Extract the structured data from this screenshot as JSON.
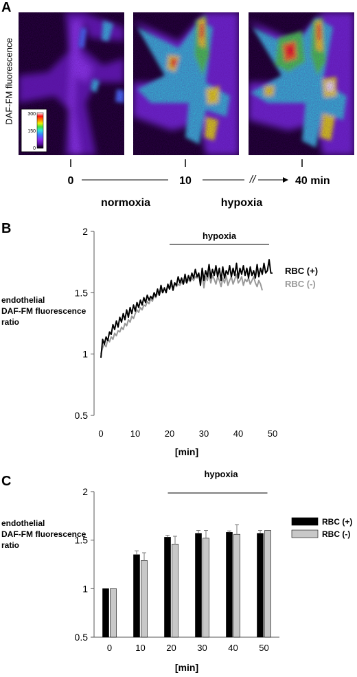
{
  "panels": {
    "a": {
      "letter": "A",
      "ylabel": "DAF-FM fluorescence",
      "colorbar_ticks": [
        "300",
        "150",
        "0"
      ],
      "colorbar_colors": [
        "#000000",
        "#5a0ea0",
        "#8b2cf0",
        "#3a7cff",
        "#2ee0e0",
        "#40e040",
        "#f0f000",
        "#ff8000",
        "#ff1010",
        "#ffffff"
      ],
      "timeline": {
        "t0": "0",
        "t10": "10",
        "t40": "40 min",
        "break_mark": "//",
        "normoxia": "normoxia",
        "hypoxia": "hypoxia"
      }
    },
    "b": {
      "letter": "B",
      "hypoxia_label": "hypoxia"
    },
    "c": {
      "letter": "C",
      "hypoxia_label": "hypoxia"
    }
  },
  "chart_data": [
    {
      "type": "line",
      "panel": "B",
      "ylabel": "endothelial DAF-FM fluorescence ratio",
      "xlabel": "[min]",
      "xlim": [
        -2,
        52
      ],
      "ylim": [
        0.5,
        2
      ],
      "xticks": [
        0,
        10,
        20,
        30,
        40,
        50
      ],
      "yticks": [
        0.5,
        1,
        1.5,
        2
      ],
      "annotation": "hypoxia",
      "annotation_range": [
        20,
        49
      ],
      "grid": false,
      "legend_placement": "right, at line ends",
      "series": [
        {
          "name": "RBC (+)",
          "color": "#000000",
          "x": [
            0,
            0.5,
            1,
            1.5,
            2,
            2.5,
            3,
            3.5,
            4,
            4.5,
            5,
            5.5,
            6,
            6.5,
            7,
            7.5,
            8,
            8.5,
            9,
            9.5,
            10,
            10.5,
            11,
            11.5,
            12,
            12.5,
            13,
            13.5,
            14,
            14.5,
            15,
            15.5,
            16,
            16.5,
            17,
            17.5,
            18,
            18.5,
            19,
            19.5,
            20,
            20.5,
            21,
            21.5,
            22,
            22.5,
            23,
            23.5,
            24,
            24.5,
            25,
            25.5,
            26,
            26.5,
            27,
            27.5,
            28,
            28.5,
            29,
            29.5,
            30,
            30.5,
            31,
            31.5,
            32,
            32.5,
            33,
            33.5,
            34,
            34.5,
            35,
            35.5,
            36,
            36.5,
            37,
            37.5,
            38,
            38.5,
            39,
            39.5,
            40,
            40.5,
            41,
            41.5,
            42,
            42.5,
            43,
            43.5,
            44,
            44.5,
            45,
            45.5,
            46,
            46.5,
            47,
            47.5,
            48,
            48.5,
            49,
            49.5,
            50
          ],
          "values": [
            0.97,
            1.12,
            1.08,
            1.14,
            1.11,
            1.18,
            1.16,
            1.24,
            1.2,
            1.27,
            1.22,
            1.3,
            1.26,
            1.33,
            1.28,
            1.36,
            1.3,
            1.38,
            1.33,
            1.4,
            1.35,
            1.42,
            1.38,
            1.44,
            1.4,
            1.46,
            1.42,
            1.48,
            1.44,
            1.47,
            1.45,
            1.5,
            1.47,
            1.53,
            1.48,
            1.56,
            1.5,
            1.54,
            1.5,
            1.57,
            1.53,
            1.6,
            1.52,
            1.58,
            1.56,
            1.63,
            1.58,
            1.62,
            1.57,
            1.65,
            1.58,
            1.64,
            1.6,
            1.66,
            1.62,
            1.69,
            1.63,
            1.66,
            1.56,
            1.7,
            1.6,
            1.68,
            1.63,
            1.73,
            1.62,
            1.69,
            1.64,
            1.72,
            1.63,
            1.7,
            1.6,
            1.71,
            1.62,
            1.68,
            1.65,
            1.72,
            1.63,
            1.7,
            1.64,
            1.74,
            1.62,
            1.7,
            1.65,
            1.72,
            1.64,
            1.7,
            1.62,
            1.71,
            1.64,
            1.68,
            1.62,
            1.73,
            1.63,
            1.7,
            1.65,
            1.74,
            1.66,
            1.68,
            1.77,
            1.66,
            1.66
          ]
        },
        {
          "name": "RBC (-)",
          "color": "#999999",
          "x": [
            0,
            0.5,
            1,
            1.5,
            2,
            2.5,
            3,
            3.5,
            4,
            4.5,
            5,
            5.5,
            6,
            6.5,
            7,
            7.5,
            8,
            8.5,
            9,
            9.5,
            10,
            10.5,
            11,
            11.5,
            12,
            12.5,
            13,
            13.5,
            14,
            14.5,
            15,
            15.5,
            16,
            16.5,
            17,
            17.5,
            18,
            18.5,
            19,
            19.5,
            20,
            20.5,
            21,
            21.5,
            22,
            22.5,
            23,
            23.5,
            24,
            24.5,
            25,
            25.5,
            26,
            26.5,
            27,
            27.5,
            28,
            28.5,
            29,
            29.5,
            30,
            30.5,
            31,
            31.5,
            32,
            32.5,
            33,
            33.5,
            34,
            34.5,
            35,
            35.5,
            36,
            36.5,
            37,
            37.5,
            38,
            38.5,
            39,
            39.5,
            40,
            40.5,
            41,
            41.5,
            42,
            42.5,
            43,
            43.5,
            44,
            44.5,
            45,
            45.5,
            46,
            46.5,
            47
          ],
          "values": [
            1.0,
            1.05,
            1.08,
            1.06,
            1.12,
            1.1,
            1.14,
            1.12,
            1.17,
            1.15,
            1.19,
            1.18,
            1.22,
            1.2,
            1.25,
            1.23,
            1.28,
            1.26,
            1.31,
            1.29,
            1.33,
            1.36,
            1.34,
            1.38,
            1.36,
            1.4,
            1.39,
            1.43,
            1.41,
            1.45,
            1.43,
            1.48,
            1.46,
            1.5,
            1.48,
            1.52,
            1.5,
            1.53,
            1.51,
            1.55,
            1.53,
            1.56,
            1.54,
            1.58,
            1.55,
            1.57,
            1.56,
            1.59,
            1.57,
            1.6,
            1.58,
            1.61,
            1.59,
            1.62,
            1.6,
            1.63,
            1.62,
            1.64,
            1.61,
            1.65,
            1.54,
            1.63,
            1.6,
            1.66,
            1.58,
            1.64,
            1.61,
            1.57,
            1.63,
            1.6,
            1.55,
            1.62,
            1.58,
            1.64,
            1.56,
            1.6,
            1.63,
            1.57,
            1.61,
            1.65,
            1.58,
            1.6,
            1.63,
            1.56,
            1.61,
            1.59,
            1.62,
            1.57,
            1.6,
            1.63,
            1.58,
            1.55,
            1.6,
            1.57,
            1.52
          ]
        }
      ]
    },
    {
      "type": "bar",
      "panel": "C",
      "ylabel": "endothelial DAF-FM fluorescence ratio",
      "xlabel": "[min]",
      "categories": [
        "0",
        "10",
        "20",
        "30",
        "40",
        "50"
      ],
      "ylim": [
        0.5,
        2
      ],
      "yticks": [
        0.5,
        1,
        1.5,
        2
      ],
      "annotation": "hypoxia",
      "annotation_categories": [
        "20",
        "50"
      ],
      "grid": false,
      "legend_placement": "right",
      "series": [
        {
          "name": "RBC (+)",
          "color": "#000000",
          "values": [
            1.0,
            1.35,
            1.53,
            1.57,
            1.58,
            1.57
          ],
          "errors": [
            0.0,
            0.04,
            0.02,
            0.03,
            0.015,
            0.03
          ]
        },
        {
          "name": "RBC (-)",
          "color": "#c8c8c8",
          "values": [
            1.0,
            1.29,
            1.46,
            1.52,
            1.56,
            1.6
          ],
          "errors": [
            0.0,
            0.08,
            0.08,
            0.08,
            0.1,
            0.0
          ]
        }
      ]
    }
  ]
}
